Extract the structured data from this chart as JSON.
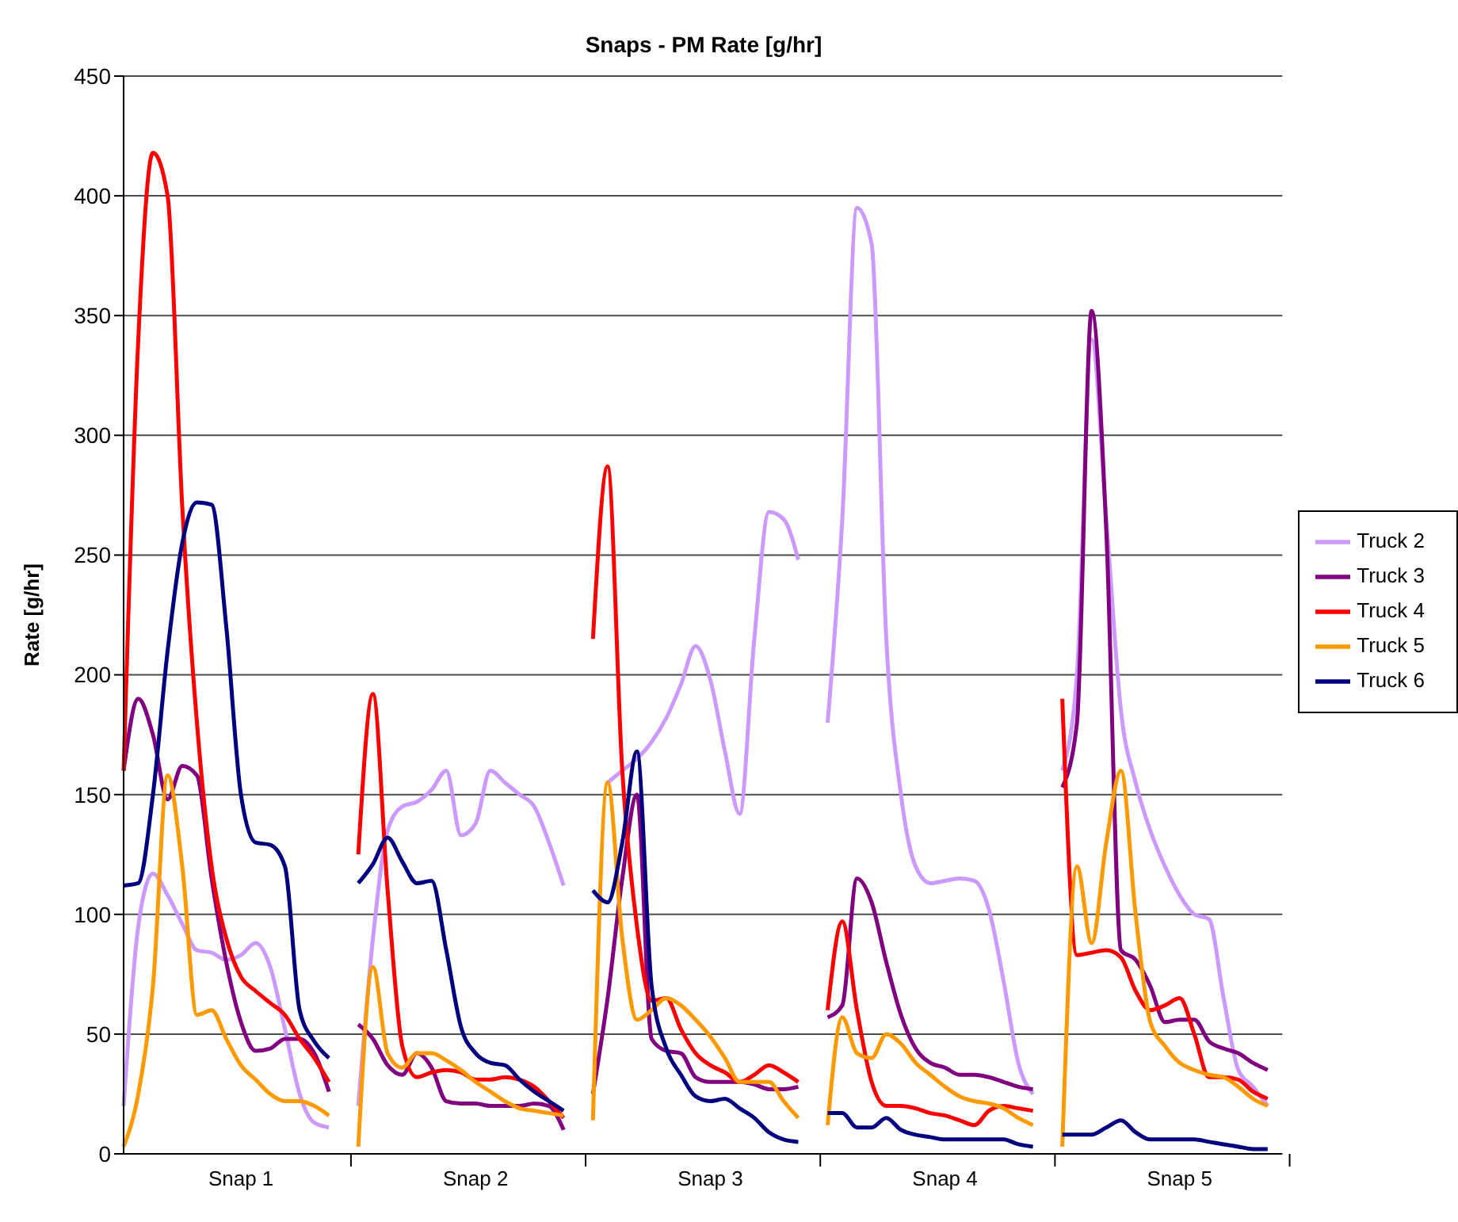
{
  "chart_data": {
    "type": "line",
    "title": "Snaps - PM Rate [g/hr]",
    "ylabel": "Rate [g/hr]",
    "categories": [
      null,
      null,
      null,
      null,
      null,
      null,
      null,
      null,
      "Snap 1",
      null,
      null,
      null,
      null,
      null,
      null,
      null,
      null,
      null,
      null,
      null,
      null,
      null,
      null,
      null,
      "Snap 2",
      null,
      null,
      null,
      null,
      null,
      null,
      null,
      null,
      null,
      null,
      null,
      null,
      null,
      null,
      null,
      "Snap 3",
      null,
      null,
      null,
      null,
      null,
      null,
      null,
      null,
      null,
      null,
      null,
      null,
      null,
      null,
      null,
      "Snap 4",
      null,
      null,
      null,
      null,
      null,
      null,
      null,
      null,
      null,
      null,
      null,
      null,
      null,
      null,
      null,
      "Snap 5",
      null,
      null,
      null,
      null,
      null,
      null,
      null
    ],
    "ylim": [
      0,
      450
    ],
    "yticks": [
      0,
      50,
      100,
      150,
      200,
      250,
      300,
      350,
      400,
      450
    ],
    "grid": "y",
    "legend": "right",
    "marker": "none",
    "line_style": "solid",
    "series": [
      {
        "name": "Truck 2",
        "color": "#cc99ff",
        "values": [
          20,
          95,
          117,
          108,
          96,
          85,
          84,
          81,
          83,
          88,
          78,
          52,
          25,
          13,
          11,
          null,
          20,
          90,
          135,
          145,
          147,
          152,
          160,
          133,
          138,
          160,
          155,
          150,
          145,
          130,
          112,
          null,
          null,
          155,
          160,
          165,
          172,
          182,
          196,
          212,
          198,
          168,
          142,
          215,
          268,
          265,
          248,
          null,
          180,
          265,
          395,
          380,
          215,
          150,
          120,
          113,
          114,
          115,
          114,
          102,
          72,
          38,
          25,
          null,
          160,
          200,
          340,
          265,
          185,
          155,
          135,
          120,
          108,
          100,
          98,
          65,
          35,
          28,
          20,
          null
        ]
      },
      {
        "name": "Truck 3",
        "color": "#800080",
        "values": [
          160,
          190,
          175,
          148,
          162,
          158,
          115,
          80,
          55,
          43,
          44,
          48,
          48,
          42,
          26,
          null,
          54,
          48,
          37,
          33,
          42,
          36,
          22,
          21,
          21,
          20,
          20,
          20,
          21,
          20,
          10,
          null,
          25,
          65,
          115,
          150,
          48,
          43,
          42,
          32,
          30,
          30,
          30,
          29,
          27,
          27,
          28,
          null,
          57,
          62,
          115,
          105,
          80,
          58,
          44,
          38,
          36,
          33,
          33,
          32,
          30,
          28,
          27,
          null,
          153,
          180,
          352,
          260,
          85,
          81,
          70,
          55,
          56,
          56,
          47,
          44,
          42,
          38,
          35,
          null
        ]
      },
      {
        "name": "Truck 4",
        "color": "#ff0000",
        "values": [
          160,
          340,
          418,
          400,
          270,
          180,
          120,
          90,
          74,
          68,
          63,
          58,
          48,
          40,
          30,
          null,
          125,
          192,
          110,
          45,
          32,
          34,
          35,
          34,
          31,
          31,
          32,
          31,
          28,
          22,
          15,
          null,
          215,
          287,
          160,
          95,
          64,
          65,
          52,
          42,
          37,
          34,
          30,
          33,
          37,
          34,
          30,
          null,
          60,
          97,
          60,
          30,
          20,
          20,
          19,
          17,
          16,
          14,
          12,
          18,
          20,
          19,
          18,
          null,
          190,
          83,
          84,
          85,
          82,
          68,
          60,
          62,
          65,
          50,
          32,
          32,
          31,
          26,
          23,
          null
        ]
      },
      {
        "name": "Truck 5",
        "color": "#ff9900",
        "values": [
          3,
          25,
          70,
          158,
          120,
          58,
          60,
          48,
          37,
          31,
          25,
          22,
          22,
          20,
          16,
          null,
          3,
          78,
          42,
          36,
          42,
          42,
          39,
          35,
          30,
          26,
          22,
          19,
          18,
          17,
          16,
          null,
          14,
          155,
          90,
          56,
          60,
          65,
          62,
          56,
          49,
          40,
          30,
          30,
          30,
          22,
          15,
          null,
          12,
          57,
          42,
          40,
          50,
          46,
          38,
          33,
          28,
          24,
          22,
          21,
          19,
          15,
          12,
          null,
          3,
          120,
          88,
          130,
          160,
          100,
          55,
          45,
          38,
          35,
          33,
          32,
          28,
          23,
          20,
          null
        ]
      },
      {
        "name": "Truck 6",
        "color": "#000080",
        "values": [
          112,
          113,
          150,
          210,
          255,
          272,
          271,
          220,
          150,
          130,
          129,
          120,
          60,
          47,
          40,
          null,
          113,
          121,
          132,
          122,
          113,
          114,
          85,
          53,
          42,
          38,
          37,
          31,
          26,
          22,
          18,
          null,
          110,
          105,
          130,
          168,
          70,
          44,
          33,
          24,
          22,
          23,
          19,
          15,
          9,
          6,
          5,
          null,
          17,
          17,
          11,
          11,
          15,
          10,
          8,
          7,
          6,
          6,
          6,
          6,
          6,
          4,
          3,
          null,
          8,
          8,
          8,
          11,
          14,
          9,
          6,
          6,
          6,
          6,
          5,
          4,
          3,
          2,
          2,
          null
        ]
      }
    ]
  }
}
